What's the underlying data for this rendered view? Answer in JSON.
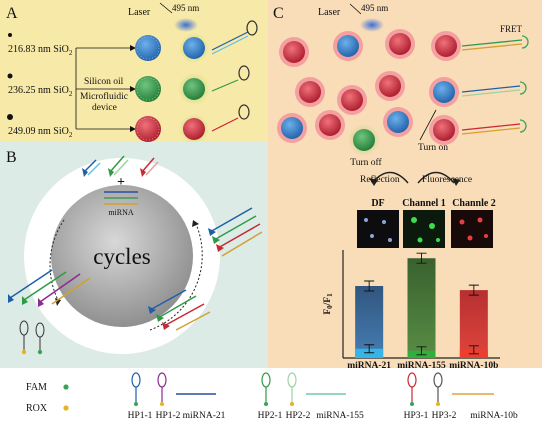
{
  "panels": {
    "a": {
      "label": "A",
      "laser": "Laser",
      "wavelength": "495 nm",
      "particles": [
        "216.83 nm SiO",
        "236.25 nm SiO",
        "249.09 nm SiO"
      ],
      "subscript": "2",
      "process_line1": "Silicon oil",
      "process_line2": "Microfluidic",
      "process_line3": "device",
      "colors": {
        "bg": "#f7e9a7",
        "blue": "#2f77c0",
        "green": "#2f9a45",
        "red": "#d1283a"
      }
    },
    "b": {
      "label": "B",
      "plus": "+",
      "mirna": "miRNA",
      "cycles": "cycles",
      "colors": {
        "bg": "#dcebe6"
      }
    },
    "c": {
      "label": "C",
      "laser": "Laser",
      "wavelength": "495 nm",
      "fret": "FRET",
      "turn_off": "Turn off",
      "turn_on": "Turn on",
      "reflection": "Reflection",
      "fluorescence": "Fluorescence",
      "df": "DF",
      "channel1": "Channel 1",
      "channel2": "Channle 2",
      "ylabel_main": "F",
      "ylabel_sub0": "0",
      "ylabel_sub1": "1",
      "colors": {
        "bg": "#f9dcb8"
      }
    }
  },
  "chart_data": {
    "type": "bar",
    "categories": [
      "miRNA-21",
      "miRNA-155",
      "miRNA-10b"
    ],
    "series": [
      {
        "values": [
          0.7,
          0.97,
          0.66
        ]
      },
      {
        "values": [
          0.09,
          0.07,
          0.08
        ]
      }
    ],
    "ylim": [
      0,
      1.05
    ],
    "colors": [
      "#2f5f93",
      "#3e6a33",
      "#c62a2f"
    ],
    "baseline_colors": [
      "#35b4e8",
      "#2fb03a",
      "#ec3d2f"
    ]
  },
  "legend": {
    "fam": "FAM",
    "rox": "ROX",
    "hp1_1": "HP1-1",
    "hp1_2": "HP1-2",
    "mir21": "miRNA-21",
    "hp2_1": "HP2-1",
    "hp2_2": "HP2-2",
    "mir155": "miRNA-155",
    "hp3_1": "HP3-1",
    "hp3_2": "HP3-2",
    "mir10b": "miRNA-10b",
    "fam_color": "#3aa35a",
    "rox_color": "#e5b424"
  }
}
